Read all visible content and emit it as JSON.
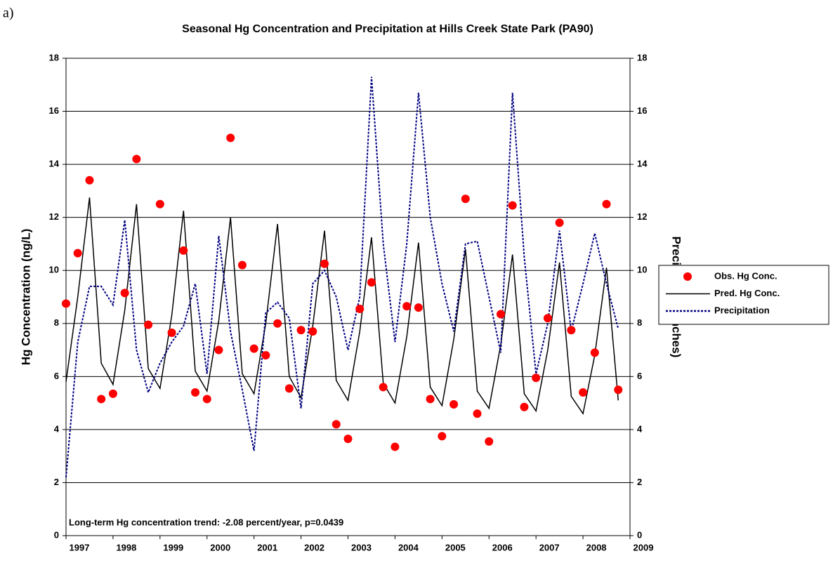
{
  "chart_data": {
    "type": "line",
    "panel_label": "a)",
    "title": "Seasonal Hg Concentration and Precipitation at Hills Creek State Park (PA90)",
    "y_label": "Hg Concentration (ng/L)",
    "y2_label": "Precipitation (Inches)",
    "annotation": "Long-term Hg concentration trend:  -2.08 percent/year,  p=0.0439",
    "x": [
      1997,
      1997.25,
      1997.5,
      1997.75,
      1998,
      1998.25,
      1998.5,
      1998.75,
      1999,
      1999.25,
      1999.5,
      1999.75,
      2000,
      2000.25,
      2000.5,
      2000.75,
      2001,
      2001.25,
      2001.5,
      2001.75,
      2002,
      2002.25,
      2002.5,
      2002.75,
      2003,
      2003.25,
      2003.5,
      2003.75,
      2004,
      2004.25,
      2004.5,
      2004.75,
      2005,
      2005.25,
      2005.5,
      2005.75,
      2006,
      2006.25,
      2006.5,
      2006.75,
      2007,
      2007.25,
      2007.5,
      2007.75,
      2008,
      2008.25,
      2008.5,
      2008.75
    ],
    "series": [
      {
        "name": "Obs. Hg Conc.",
        "color": "#ff0000",
        "mark": "marker",
        "values": [
          8.75,
          10.65,
          13.4,
          5.15,
          5.35,
          9.15,
          14.2,
          7.95,
          12.5,
          7.65,
          10.75,
          5.4,
          5.15,
          7.0,
          15.0,
          10.2,
          7.05,
          6.8,
          8.0,
          5.55,
          7.75,
          7.7,
          10.25,
          4.2,
          3.65,
          8.55,
          9.55,
          5.6,
          3.35,
          8.65,
          8.6,
          5.15,
          3.75,
          4.95,
          12.7,
          4.6,
          3.55,
          8.35,
          12.45,
          4.85,
          5.95,
          8.2,
          11.8,
          7.75,
          5.4,
          6.9,
          12.5,
          5.5
        ]
      },
      {
        "name": "Pred. Hg Conc.",
        "color": "#000000",
        "mark": "line",
        "values": [
          5.8,
          9.0,
          12.75,
          6.5,
          5.7,
          8.5,
          12.5,
          6.3,
          5.55,
          8.3,
          12.25,
          6.2,
          5.45,
          8.1,
          12.0,
          6.1,
          5.35,
          8.0,
          11.75,
          6.0,
          5.2,
          7.9,
          11.5,
          5.85,
          5.1,
          7.7,
          11.25,
          5.75,
          5.0,
          7.5,
          11.05,
          5.6,
          4.9,
          7.4,
          10.8,
          5.45,
          4.8,
          7.2,
          10.6,
          5.35,
          4.7,
          7.0,
          10.3,
          5.25,
          4.6,
          6.8,
          10.1,
          5.1
        ]
      },
      {
        "name": "Precipitation",
        "color": "#000080",
        "mark": "dashed",
        "axis": "y2",
        "values": [
          2.2,
          7.3,
          9.4,
          9.4,
          8.7,
          11.9,
          7.0,
          5.4,
          6.5,
          7.3,
          7.9,
          9.5,
          6.1,
          11.3,
          7.7,
          5.5,
          3.2,
          8.4,
          8.8,
          8.2,
          4.8,
          9.5,
          10.0,
          9.0,
          7.0,
          9.0,
          17.3,
          11.0,
          7.3,
          11.0,
          16.7,
          12.0,
          9.5,
          7.7,
          11.0,
          11.1,
          9.0,
          6.9,
          16.7,
          10.5,
          6.1,
          8.0,
          11.5,
          7.7,
          9.5,
          11.4,
          9.5,
          7.8
        ]
      }
    ],
    "xlim": [
      1997,
      2009
    ],
    "xticks": [
      1997,
      1998,
      1999,
      2000,
      2001,
      2002,
      2003,
      2004,
      2005,
      2006,
      2007,
      2008,
      2009
    ],
    "ylim": [
      0,
      18
    ],
    "yticks": [
      0,
      2,
      4,
      6,
      8,
      10,
      12,
      14,
      16,
      18
    ],
    "y2lim": [
      0,
      18
    ],
    "y2ticks": [
      0,
      2,
      4,
      6,
      8,
      10,
      12,
      14,
      16,
      18
    ],
    "grid": true,
    "legend": "right"
  }
}
